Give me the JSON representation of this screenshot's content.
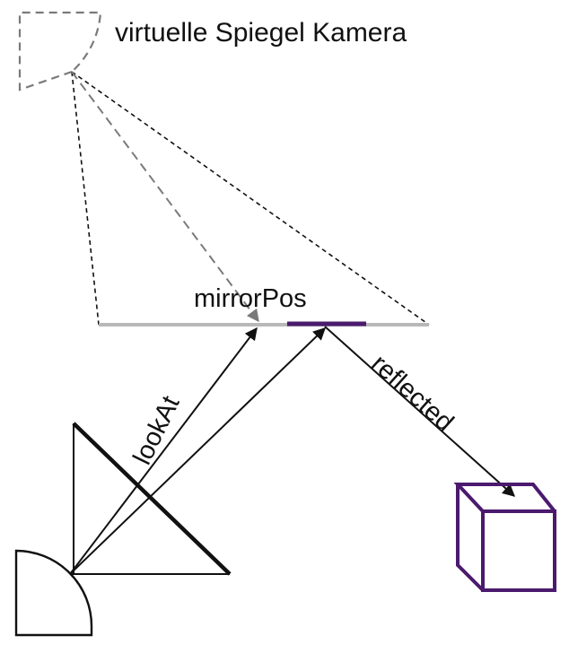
{
  "labels": {
    "virtual_camera": "virtuelle Spiegel Kamera",
    "mirror_pos": "mirrorPos",
    "look_at": "lookAt",
    "reflected": "reflected"
  },
  "colors": {
    "ink": "#111111",
    "dashed_gray": "#7a7a7a",
    "mirror_plane": "#b8b8b8",
    "mirror_highlight": "#4b1a6e",
    "cube": "#4b1a6e"
  }
}
